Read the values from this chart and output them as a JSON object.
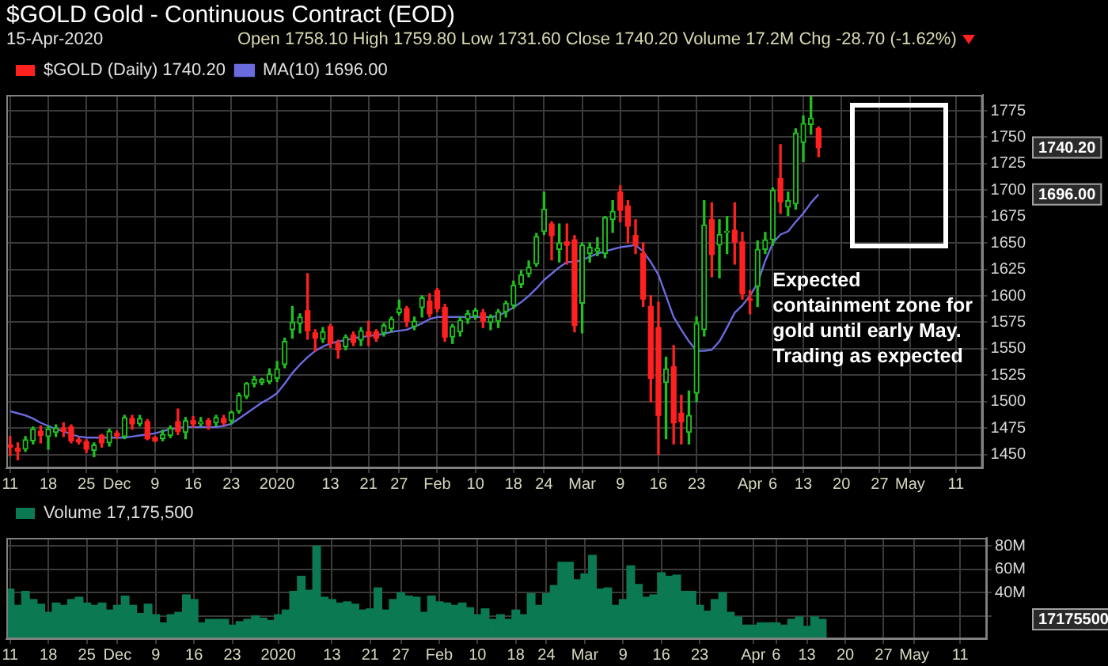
{
  "chart_data": [
    {
      "type": "candlestick",
      "title": "$GOLD Gold - Continuous Contract (EOD)",
      "subtitle": "Open 1758.10 High 1759.80 Low 1731.60 Close 1740.20 Volume 17.2M Chg -28.70 (-1.62%)",
      "categories": [
        "11",
        null,
        null,
        null,
        null,
        "18",
        null,
        null,
        null,
        null,
        "25",
        null,
        null,
        null,
        "Dec",
        null,
        null,
        null,
        null,
        "9",
        null,
        null,
        null,
        null,
        "16",
        null,
        null,
        null,
        null,
        "23",
        null,
        null,
        null,
        null,
        null,
        "2020",
        null,
        null,
        null,
        null,
        null,
        null,
        "13",
        null,
        null,
        null,
        null,
        "21",
        null,
        null,
        null,
        "27",
        null,
        null,
        null,
        null,
        "Feb",
        null,
        null,
        null,
        null,
        "10",
        null,
        null,
        null,
        null,
        "18",
        null,
        null,
        null,
        "24",
        null,
        null,
        null,
        null,
        "Mar",
        null,
        null,
        null,
        null,
        "9",
        null,
        null,
        null,
        null,
        "16",
        null,
        null,
        null,
        null,
        "23",
        null,
        null,
        null,
        null,
        null,
        null,
        "Apr",
        null,
        null,
        "6",
        null,
        null,
        null,
        "13",
        null,
        null,
        null,
        null,
        "20",
        null,
        null,
        null,
        null,
        "27",
        null,
        null,
        null,
        "May",
        null,
        null,
        null,
        null,
        null,
        "11",
        null,
        null,
        null
      ],
      "series": [
        {
          "name": "$GOLD (Daily) 1740.20",
          "ohlc": [
            [
              1459,
              1467,
              1449,
              1457
            ],
            [
              1456,
              1461,
              1445,
              1453
            ],
            [
              1455,
              1467,
              1453,
              1464
            ],
            [
              1463,
              1476,
              1460,
              1474
            ],
            [
              1472,
              1477,
              1461,
              1468
            ],
            [
              1467,
              1477,
              1455,
              1474
            ],
            [
              1471,
              1478,
              1467,
              1475
            ],
            [
              1475,
              1480,
              1467,
              1472
            ],
            [
              1476,
              1478,
              1461,
              1463
            ],
            [
              1464,
              1466,
              1460,
              1462
            ],
            [
              1462,
              1464,
              1452,
              1455
            ],
            [
              1454,
              1461,
              1448,
              1459
            ],
            [
              1468,
              1469,
              1457,
              1461
            ],
            [
              1461,
              1474,
              1458,
              1472
            ],
            [
              1470,
              1472,
              1465,
              1468
            ],
            [
              1467,
              1487,
              1465,
              1485
            ],
            [
              1484,
              1487,
              1474,
              1479
            ],
            [
              1479,
              1487,
              1477,
              1484
            ],
            [
              1481,
              1483,
              1464,
              1465
            ],
            [
              1466,
              1467,
              1462,
              1463
            ],
            [
              1465,
              1473,
              1463,
              1469
            ],
            [
              1468,
              1477,
              1466,
              1475
            ],
            [
              1481,
              1493,
              1469,
              1472
            ],
            [
              1471,
              1485,
              1465,
              1482
            ],
            [
              1482,
              1486,
              1476,
              1479
            ],
            [
              1479,
              1485,
              1477,
              1481
            ],
            [
              1482,
              1484,
              1474,
              1478
            ],
            [
              1480,
              1487,
              1477,
              1485
            ],
            [
              1484,
              1487,
              1478,
              1480
            ],
            [
              1482,
              1491,
              1479,
              1490
            ],
            [
              1491,
              1508,
              1489,
              1506
            ],
            [
              1505,
              1518,
              1503,
              1517
            ],
            [
              1517,
              1524,
              1514,
              1521
            ],
            [
              1518,
              1522,
              1516,
              1521
            ],
            [
              1519,
              1531,
              1517,
              1526
            ],
            [
              1522,
              1538,
              1519,
              1531
            ],
            [
              1535,
              1560,
              1532,
              1557
            ],
            [
              1568,
              1590,
              1560,
              1575
            ],
            [
              1574,
              1583,
              1565,
              1580
            ],
            [
              1586,
              1621,
              1559,
              1567
            ],
            [
              1565,
              1568,
              1548,
              1560
            ],
            [
              1559,
              1570,
              1556,
              1566
            ],
            [
              1571,
              1573,
              1551,
              1555
            ],
            [
              1555,
              1558,
              1541,
              1549
            ],
            [
              1552,
              1563,
              1549,
              1561
            ],
            [
              1563,
              1566,
              1553,
              1556
            ],
            [
              1558,
              1570,
              1553,
              1567
            ],
            [
              1566,
              1576,
              1553,
              1562
            ],
            [
              1566,
              1568,
              1557,
              1560
            ],
            [
              1565,
              1574,
              1562,
              1572
            ],
            [
              1569,
              1580,
              1566,
              1578
            ],
            [
              1584,
              1596,
              1582,
              1588
            ],
            [
              1588,
              1590,
              1571,
              1576
            ],
            [
              1571,
              1580,
              1568,
              1576
            ],
            [
              1589,
              1600,
              1580,
              1598
            ],
            [
              1595,
              1602,
              1580,
              1583
            ],
            [
              1605,
              1607,
              1585,
              1588
            ],
            [
              1589,
              1592,
              1557,
              1561
            ],
            [
              1561,
              1573,
              1555,
              1571
            ],
            [
              1566,
              1580,
              1562,
              1577
            ],
            [
              1578,
              1586,
              1574,
              1583
            ],
            [
              1581,
              1588,
              1578,
              1586
            ],
            [
              1584,
              1587,
              1570,
              1576
            ],
            [
              1575,
              1582,
              1568,
              1580
            ],
            [
              1576,
              1587,
              1570,
              1585
            ],
            [
              1585,
              1595,
              1580,
              1593
            ],
            [
              1591,
              1614,
              1588,
              1610
            ],
            [
              1611,
              1624,
              1608,
              1620
            ],
            [
              1621,
              1633,
              1618,
              1627
            ],
            [
              1630,
              1659,
              1628,
              1656
            ],
            [
              1661,
              1698,
              1658,
              1682
            ],
            [
              1668,
              1670,
              1634,
              1657
            ],
            [
              1644,
              1668,
              1632,
              1650
            ],
            [
              1651,
              1668,
              1630,
              1648
            ],
            [
              1653,
              1657,
              1566,
              1572
            ],
            [
              1593,
              1650,
              1565,
              1648
            ],
            [
              1640,
              1650,
              1632,
              1646
            ],
            [
              1642,
              1655,
              1638,
              1645
            ],
            [
              1640,
              1675,
              1636,
              1674
            ],
            [
              1672,
              1690,
              1660,
              1680
            ],
            [
              1698,
              1704,
              1670,
              1681
            ],
            [
              1685,
              1690,
              1650,
              1666
            ],
            [
              1657,
              1672,
              1640,
              1648
            ],
            [
              1640,
              1650,
              1590,
              1597
            ],
            [
              1590,
              1600,
              1500,
              1522
            ],
            [
              1570,
              1594,
              1450,
              1487
            ],
            [
              1518,
              1542,
              1465,
              1531
            ],
            [
              1533,
              1553,
              1460,
              1480
            ],
            [
              1489,
              1506,
              1460,
              1481
            ],
            [
              1471,
              1510,
              1460,
              1487
            ],
            [
              1508,
              1580,
              1500,
              1574
            ],
            [
              1568,
              1690,
              1562,
              1667
            ],
            [
              1672,
              1688,
              1618,
              1639
            ],
            [
              1648,
              1672,
              1617,
              1658
            ],
            [
              1660,
              1675,
              1640,
              1661
            ],
            [
              1662,
              1688,
              1630,
              1651
            ],
            [
              1651,
              1660,
              1597,
              1602
            ],
            [
              1597,
              1605,
              1583,
              1596
            ],
            [
              1609,
              1652,
              1590,
              1644
            ],
            [
              1644,
              1660,
              1640,
              1653
            ],
            [
              1653,
              1702,
              1648,
              1700
            ],
            [
              1711,
              1743,
              1678,
              1689
            ],
            [
              1684,
              1698,
              1676,
              1690
            ],
            [
              1687,
              1758,
              1682,
              1754
            ],
            [
              1745,
              1770,
              1727,
              1763
            ],
            [
              1762,
              1788,
              1753,
              1768
            ],
            [
              1758.1,
              1759.8,
              1731.6,
              1740.2
            ],
            null,
            null,
            null,
            null,
            null,
            null,
            null,
            null,
            null,
            null,
            null,
            null,
            null,
            null,
            null,
            null,
            null,
            null,
            null,
            null,
            null
          ],
          "colors": [
            "#ff2020",
            "#ff2020",
            "#20c020",
            "#20c020",
            "#ff2020",
            "#20c020",
            "#20c020",
            "#ff2020",
            "#ff2020",
            "#ff2020",
            "#ff2020",
            "#20c020",
            "#ff2020",
            "#20c020",
            "#ff2020",
            "#20c020",
            "#ff2020",
            "#20c020",
            "#ff2020",
            "#ff2020",
            "#20c020",
            "#20c020",
            "#ff2020",
            "#20c020",
            "#ff2020",
            "#20c020",
            "#ff2020",
            "#20c020",
            "#ff2020",
            "#20c020",
            "#20c020",
            "#20c020",
            "#20c020",
            "#20c020",
            "#20c020",
            "#20c020",
            "#20c020",
            "#20c020",
            "#20c020",
            "#ff2020",
            "#ff2020",
            "#20c020",
            "#ff2020",
            "#ff2020",
            "#20c020",
            "#ff2020",
            "#20c020",
            "#ff2020",
            "#ff2020",
            "#20c020",
            "#20c020",
            "#20c020",
            "#ff2020",
            "#20c020",
            "#20c020",
            "#ff2020",
            "#ff2020",
            "#ff2020",
            "#20c020",
            "#20c020",
            "#20c020",
            "#20c020",
            "#ff2020",
            "#20c020",
            "#20c020",
            "#20c020",
            "#20c020",
            "#20c020",
            "#20c020",
            "#20c020",
            "#20c020",
            "#ff2020",
            "#20c020",
            "#ff2020",
            "#ff2020",
            "#20c020",
            "#20c020",
            "#20c020",
            "#20c020",
            "#20c020",
            "#ff2020",
            "#ff2020",
            "#ff2020",
            "#ff2020",
            "#ff2020",
            "#ff2020",
            "#20c020",
            "#ff2020",
            "#ff2020",
            "#20c020",
            "#20c020",
            "#20c020",
            "#ff2020",
            "#20c020",
            "#20c020",
            "#ff2020",
            "#ff2020",
            "#ff2020",
            "#20c020",
            "#20c020",
            "#20c020",
            "#ff2020",
            "#20c020",
            "#20c020",
            "#20c020",
            "#20c020",
            "#ff2020",
            null,
            null,
            null,
            null,
            null,
            null,
            null,
            null,
            null,
            null,
            null,
            null,
            null,
            null,
            null,
            null,
            null,
            null,
            null,
            null,
            null
          ]
        },
        {
          "type": "line",
          "name": "MA(10) 1696.00",
          "color": "#6b6be0",
          "values": [
            1491,
            1489,
            1487,
            1484,
            1480,
            1477,
            1474,
            1472,
            1469,
            1467,
            1466,
            1466,
            1466,
            1466,
            1466,
            1466,
            1467,
            1468,
            1469,
            1470,
            1472,
            1474,
            1475,
            1476,
            1476,
            1476,
            1476,
            1476,
            1477,
            1479,
            1484,
            1489,
            1494,
            1499,
            1503,
            1508,
            1517,
            1527,
            1535,
            1542,
            1548,
            1552,
            1555,
            1557,
            1558,
            1560,
            1561,
            1562,
            1563,
            1564,
            1566,
            1567,
            1568,
            1571,
            1574,
            1578,
            1580,
            1580,
            1580,
            1580,
            1580,
            1580,
            1580,
            1580,
            1581,
            1585,
            1589,
            1594,
            1600,
            1607,
            1615,
            1621,
            1627,
            1632,
            1632,
            1634,
            1637,
            1640,
            1642,
            1644,
            1646,
            1647,
            1648,
            1642,
            1632,
            1620,
            1600,
            1580,
            1568,
            1557,
            1548,
            1548,
            1549,
            1557,
            1570,
            1584,
            1591,
            1600,
            1612,
            1633,
            1650,
            1658,
            1661,
            1670,
            1678,
            1688,
            1696,
            null,
            null,
            null,
            null,
            null,
            null,
            null,
            null,
            null,
            null,
            null,
            null,
            null,
            null,
            null,
            null,
            null,
            null,
            null,
            null,
            null
          ]
        }
      ],
      "ylim": [
        1437,
        1790
      ],
      "yticks": [
        1450,
        1475,
        1500,
        1525,
        1550,
        1575,
        1600,
        1625,
        1650,
        1675,
        1700,
        1725,
        1750,
        1775
      ],
      "grid": true,
      "legend": "top left",
      "annotations": [
        "15-Apr-2020",
        "Expected containment zone for gold until early May. Trading as expected",
        "1740.20",
        "1696.00"
      ]
    },
    {
      "type": "bar",
      "categories": [
        "11",
        null,
        null,
        null,
        null,
        "18",
        null,
        null,
        null,
        null,
        "25",
        null,
        null,
        null,
        "Dec",
        null,
        null,
        null,
        null,
        "9",
        null,
        null,
        null,
        null,
        "16",
        null,
        null,
        null,
        null,
        "23",
        null,
        null,
        null,
        null,
        null,
        "2020",
        null,
        null,
        null,
        null,
        null,
        null,
        "13",
        null,
        null,
        null,
        null,
        "21",
        null,
        null,
        null,
        "27",
        null,
        null,
        null,
        null,
        "Feb",
        null,
        null,
        null,
        null,
        "10",
        null,
        null,
        null,
        null,
        "18",
        null,
        null,
        null,
        "24",
        null,
        null,
        null,
        null,
        "Mar",
        null,
        null,
        null,
        null,
        "9",
        null,
        null,
        null,
        null,
        "16",
        null,
        null,
        null,
        null,
        "23",
        null,
        null,
        null,
        null,
        null,
        null,
        "Apr",
        null,
        null,
        "6",
        null,
        null,
        null,
        "13",
        null,
        null,
        null,
        null,
        "20",
        null,
        null,
        null,
        null,
        "27",
        null,
        null,
        null,
        "May",
        null,
        null,
        null,
        null,
        null,
        "11",
        null,
        null,
        null
      ],
      "series": [
        {
          "name": "Volume 17,175,500",
          "color": "#0b7a52",
          "values": [
            43,
            29,
            41,
            34,
            30,
            23,
            31,
            29,
            34,
            36,
            31,
            29,
            31,
            25,
            29,
            37,
            29,
            22,
            30,
            21,
            14,
            21,
            23,
            38,
            34,
            14,
            17,
            17,
            17,
            12,
            15,
            17,
            20,
            18,
            16,
            21,
            25,
            41,
            54,
            42,
            80,
            36,
            34,
            31,
            32,
            30,
            25,
            26,
            44,
            25,
            34,
            40,
            37,
            36,
            23,
            37,
            32,
            31,
            29,
            31,
            27,
            21,
            26,
            17,
            21,
            17,
            25,
            21,
            39,
            29,
            39,
            46,
            66,
            66,
            51,
            56,
            72,
            43,
            44,
            29,
            34,
            63,
            47,
            36,
            38,
            57,
            54,
            55,
            41,
            41,
            29,
            24,
            34,
            40,
            23,
            19,
            12,
            12,
            14,
            14,
            14,
            12,
            17,
            19,
            11,
            19,
            17,
            null,
            null,
            null,
            null,
            null,
            null,
            null,
            null,
            null,
            null,
            null,
            null,
            null,
            null,
            null,
            null,
            null,
            null,
            null,
            null,
            null
          ]
        }
      ],
      "ylim": [
        0,
        87
      ],
      "yticks": [
        {
          "value": 20,
          "label": null
        },
        {
          "value": 40,
          "label": "40M"
        },
        {
          "value": 60,
          "label": "60M"
        },
        {
          "value": 80,
          "label": "80M"
        }
      ],
      "grid": true,
      "legend": "top left",
      "annotations": [
        "17175500"
      ]
    }
  ]
}
